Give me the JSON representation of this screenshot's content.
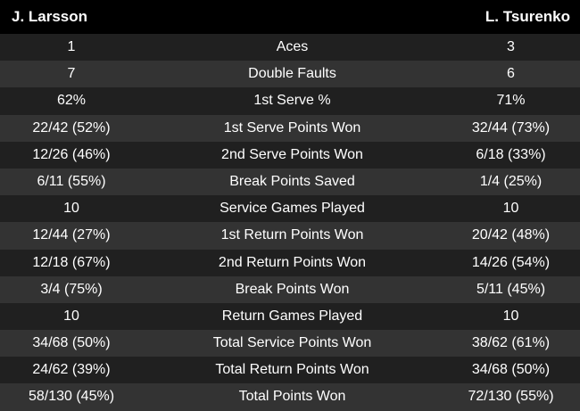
{
  "players": {
    "left": "J. Larsson",
    "right": "L. Tsurenko"
  },
  "stats": [
    {
      "label": "Aces",
      "left": "1",
      "right": "3"
    },
    {
      "label": "Double Faults",
      "left": "7",
      "right": "6"
    },
    {
      "label": "1st Serve %",
      "left": "62%",
      "right": "71%"
    },
    {
      "label": "1st Serve Points Won",
      "left": "22/42 (52%)",
      "right": "32/44 (73%)"
    },
    {
      "label": "2nd Serve Points Won",
      "left": "12/26 (46%)",
      "right": "6/18 (33%)"
    },
    {
      "label": "Break Points Saved",
      "left": "6/11 (55%)",
      "right": "1/4 (25%)"
    },
    {
      "label": "Service Games Played",
      "left": "10",
      "right": "10"
    },
    {
      "label": "1st Return Points Won",
      "left": "12/44 (27%)",
      "right": "20/42 (48%)"
    },
    {
      "label": "2nd Return Points Won",
      "left": "12/18 (67%)",
      "right": "14/26 (54%)"
    },
    {
      "label": "Break Points Won",
      "left": "3/4 (75%)",
      "right": "5/11 (45%)"
    },
    {
      "label": "Return Games Played",
      "left": "10",
      "right": "10"
    },
    {
      "label": "Total Service Points Won",
      "left": "34/68 (50%)",
      "right": "38/62 (61%)"
    },
    {
      "label": "Total Return Points Won",
      "left": "24/62 (39%)",
      "right": "34/68 (50%)"
    },
    {
      "label": "Total Points Won",
      "left": "58/130 (45%)",
      "right": "72/130 (55%)"
    }
  ],
  "colors": {
    "background": "#000000",
    "row_dark": "#202020",
    "row_light": "#333333",
    "text": "#ffffff"
  }
}
